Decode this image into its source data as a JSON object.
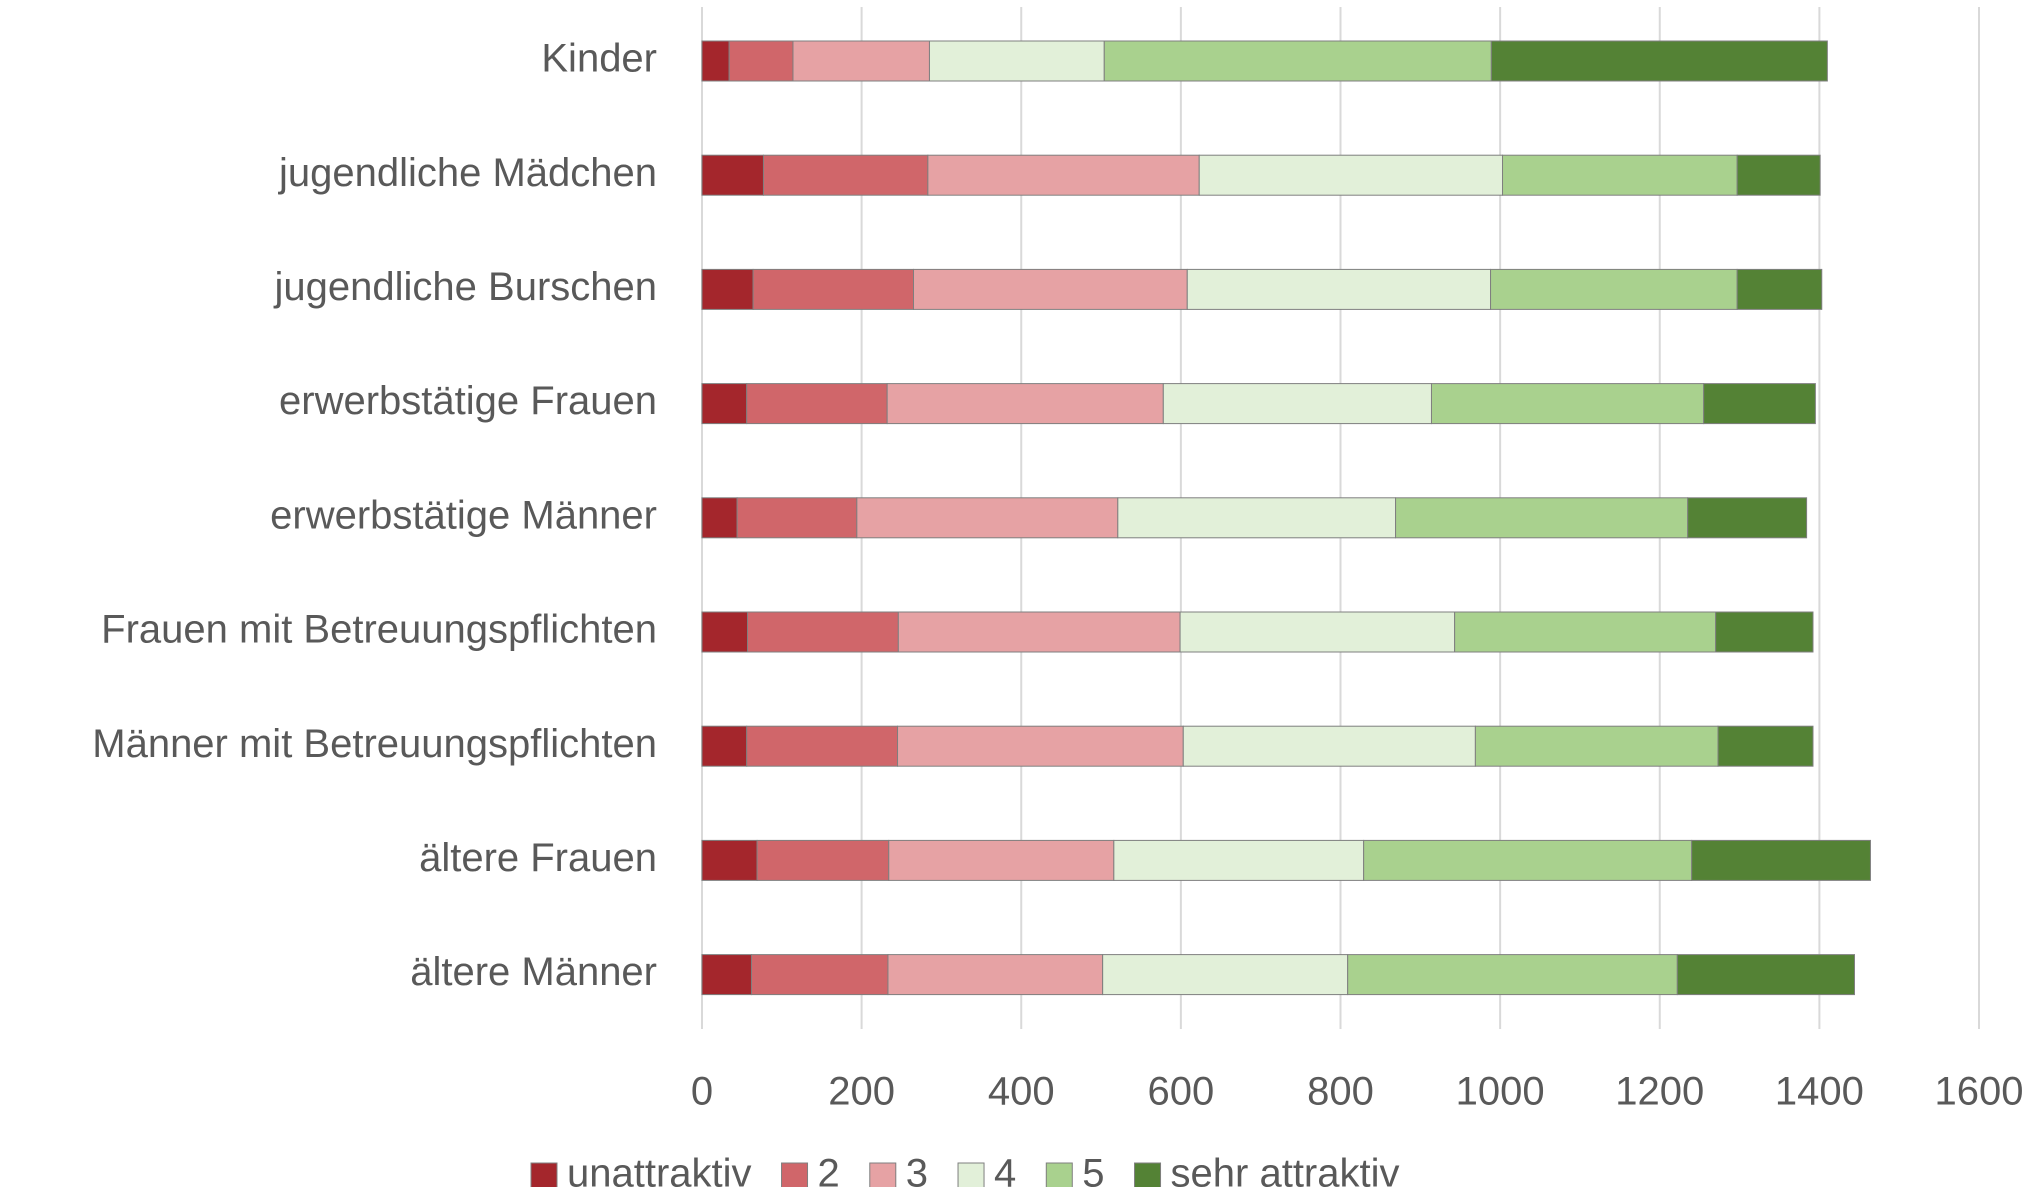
{
  "chart_data": {
    "type": "stacked_barh",
    "categories": [
      "Kinder",
      "jugendliche Mädchen",
      "jugendliche Burschen",
      "erwerbstätige Frauen",
      "erwerbstätige Männer",
      "Frauen mit Betreuungspflichten",
      "Männer mit Betreuungspflichten",
      "ältere Frauen",
      "ältere Männer"
    ],
    "series": [
      {
        "name": "unattraktiv",
        "color": "#a4262c",
        "values": [
          34,
          77,
          64,
          56,
          44,
          57,
          56,
          69,
          62
        ]
      },
      {
        "name": "2",
        "color": "#d0666a",
        "values": [
          80,
          206,
          201,
          176,
          150,
          189,
          189,
          165,
          171
        ]
      },
      {
        "name": "3",
        "color": "#e6a2a4",
        "values": [
          171,
          340,
          343,
          346,
          327,
          353,
          358,
          282,
          269
        ]
      },
      {
        "name": "4",
        "color": "#e2f0d9",
        "values": [
          219,
          380,
          380,
          336,
          348,
          344,
          366,
          313,
          307
        ]
      },
      {
        "name": "5",
        "color": "#a9d18e",
        "values": [
          485,
          294,
          309,
          341,
          366,
          327,
          304,
          411,
          413
        ]
      },
      {
        "name": "sehr attraktiv",
        "color": "#548235",
        "values": [
          421,
          104,
          106,
          140,
          149,
          122,
          119,
          224,
          222
        ]
      }
    ],
    "xlim": [
      0,
      1600
    ],
    "xticks": [
      0,
      200,
      400,
      600,
      800,
      1000,
      1200,
      1400,
      1600
    ],
    "grid": true,
    "legend": "bottom"
  }
}
